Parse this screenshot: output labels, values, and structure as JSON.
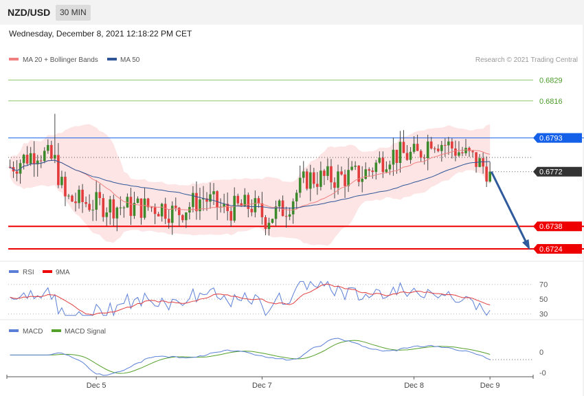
{
  "header": {
    "symbol": "NZD/USD",
    "timeframe": "30 MIN",
    "datetime": "Wednesday, December 8, 2021 12:18:22 PM CET"
  },
  "legend": {
    "ma20": "MA 20 + Bollinger Bands",
    "ma50": "MA 50",
    "credit": "Research © 2021 Trading Central",
    "rsi": "RSI",
    "rsi_ma": "9MA",
    "macd": "MACD",
    "macd_signal": "MACD Signal"
  },
  "colors": {
    "bull": "#3d8a2c",
    "bear": "#e23b3b",
    "resistance": "#1560e8",
    "support": "#ee0000",
    "target_line": "#8fc56d",
    "ma20": "#f08080",
    "ma50": "#2f5597",
    "band_fill": "#fde2e2",
    "arrow": "#2f5a9b",
    "price_tag": "#333333",
    "rsi": "#5b7fd6",
    "macd": "#5b7fd6",
    "macd_signal": "#55a02a"
  },
  "chart_data": [
    {
      "type": "candlestick",
      "price_range": [
        0.6718,
        0.6836
      ],
      "levels": [
        {
          "role": "target",
          "value": 0.6829,
          "label": "0.6829"
        },
        {
          "role": "target",
          "value": 0.6816,
          "label": "0.6816"
        },
        {
          "role": "resistance",
          "value": 0.6793,
          "label": "0.6793"
        },
        {
          "role": "current",
          "value": 0.6772,
          "label": "0.6772"
        },
        {
          "role": "support",
          "value": 0.6738,
          "label": "0.6738"
        },
        {
          "role": "support",
          "value": 0.6724,
          "label": "0.6724"
        }
      ],
      "x_ticks": [
        {
          "label": "Dec 5",
          "index": 25
        },
        {
          "label": "Dec 7",
          "index": 73
        },
        {
          "label": "Dec 8",
          "index": 117
        },
        {
          "label": "Dec 9",
          "index": 139
        }
      ],
      "forecast": {
        "from_index": 139,
        "from_value": 0.6772,
        "to_index": 151,
        "to_value": 0.6724
      }
    },
    {
      "type": "line",
      "title": "RSI",
      "y_ticks": [
        70,
        50,
        30
      ],
      "ylim": [
        25,
        80
      ]
    },
    {
      "type": "line",
      "title": "MACD",
      "y_ticks": [
        {
          "label": "0",
          "value": 0
        },
        {
          "label": "-0",
          "value": -0.0006
        }
      ]
    }
  ]
}
